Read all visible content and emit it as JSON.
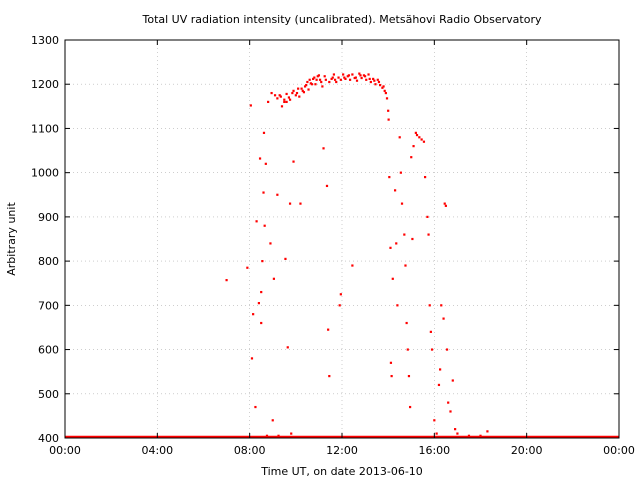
{
  "chart_data": {
    "type": "scatter",
    "title": "Total UV radiation intensity (uncalibrated). Metsähovi Radio Observatory",
    "xlabel": "Time UT, on date 2013-06-10",
    "ylabel": "Arbitrary unit",
    "x_unit": "hours UT",
    "xlim": [
      0,
      24
    ],
    "ylim": [
      400,
      1300
    ],
    "x_ticks": [
      {
        "value": 0,
        "label": "00:00"
      },
      {
        "value": 4,
        "label": "04:00"
      },
      {
        "value": 8,
        "label": "08:00"
      },
      {
        "value": 12,
        "label": "12:00"
      },
      {
        "value": 16,
        "label": "16:00"
      },
      {
        "value": 20,
        "label": "20:00"
      },
      {
        "value": 24,
        "label": "00:00"
      }
    ],
    "y_ticks": [
      400,
      500,
      600,
      700,
      800,
      900,
      1000,
      1100,
      1200,
      1300
    ],
    "grid": true,
    "legend": "none",
    "series_color": "#ff0000",
    "baseline": {
      "value": 400,
      "x_range": [
        0,
        24
      ]
    },
    "points": [
      [
        7.0,
        757
      ],
      [
        7.9,
        785
      ],
      [
        8.05,
        1152
      ],
      [
        8.1,
        580
      ],
      [
        8.15,
        680
      ],
      [
        8.25,
        470
      ],
      [
        8.3,
        890
      ],
      [
        8.4,
        705
      ],
      [
        8.45,
        1032
      ],
      [
        8.5,
        730
      ],
      [
        8.55,
        800
      ],
      [
        8.6,
        955
      ],
      [
        8.62,
        1090
      ],
      [
        8.65,
        880
      ],
      [
        8.7,
        1020
      ],
      [
        8.5,
        660
      ],
      [
        8.8,
        1160
      ],
      [
        8.9,
        840
      ],
      [
        8.95,
        1180
      ],
      [
        9.05,
        760
      ],
      [
        9.1,
        1175
      ],
      [
        9.2,
        950
      ],
      [
        9.3,
        1175
      ],
      [
        9.4,
        1150
      ],
      [
        9.5,
        1165
      ],
      [
        9.55,
        805
      ],
      [
        9.6,
        1160
      ],
      [
        9.65,
        605
      ],
      [
        9.7,
        1170
      ],
      [
        9.75,
        930
      ],
      [
        9.85,
        1180
      ],
      [
        9.9,
        1025
      ],
      [
        10.0,
        1175
      ],
      [
        10.1,
        1190
      ],
      [
        10.2,
        930
      ],
      [
        10.3,
        1185
      ],
      [
        10.4,
        1195
      ],
      [
        10.5,
        1205
      ],
      [
        10.6,
        1210
      ],
      [
        10.7,
        1200
      ],
      [
        10.8,
        1215
      ],
      [
        10.9,
        1210
      ],
      [
        11.0,
        1220
      ],
      [
        11.1,
        1205
      ],
      [
        11.2,
        1055
      ],
      [
        11.3,
        1210
      ],
      [
        11.35,
        970
      ],
      [
        11.4,
        645
      ],
      [
        11.45,
        540
      ],
      [
        11.6,
        1215
      ],
      [
        11.7,
        1210
      ],
      [
        11.9,
        700
      ],
      [
        11.95,
        725
      ],
      [
        12.1,
        1215
      ],
      [
        12.3,
        1220
      ],
      [
        12.45,
        790
      ],
      [
        12.6,
        1215
      ],
      [
        12.8,
        1220
      ],
      [
        13.0,
        1218
      ],
      [
        13.2,
        1212
      ],
      [
        13.4,
        1208
      ],
      [
        13.6,
        1205
      ],
      [
        13.8,
        1195
      ],
      [
        13.9,
        1180
      ],
      [
        14.0,
        1140
      ],
      [
        14.02,
        1120
      ],
      [
        14.05,
        990
      ],
      [
        14.1,
        830
      ],
      [
        14.12,
        570
      ],
      [
        14.15,
        540
      ],
      [
        14.2,
        760
      ],
      [
        14.3,
        960
      ],
      [
        14.35,
        840
      ],
      [
        14.4,
        700
      ],
      [
        14.5,
        1080
      ],
      [
        14.55,
        1000
      ],
      [
        14.6,
        930
      ],
      [
        14.7,
        860
      ],
      [
        14.75,
        790
      ],
      [
        14.8,
        660
      ],
      [
        14.85,
        600
      ],
      [
        14.9,
        540
      ],
      [
        14.95,
        470
      ],
      [
        15.0,
        1035
      ],
      [
        15.05,
        850
      ],
      [
        15.1,
        1060
      ],
      [
        15.2,
        1090
      ],
      [
        15.25,
        1085
      ],
      [
        15.35,
        1080
      ],
      [
        15.45,
        1075
      ],
      [
        15.55,
        1070
      ],
      [
        15.6,
        990
      ],
      [
        15.7,
        900
      ],
      [
        15.75,
        860
      ],
      [
        15.8,
        700
      ],
      [
        15.85,
        640
      ],
      [
        15.9,
        600
      ],
      [
        16.0,
        440
      ],
      [
        16.1,
        410
      ],
      [
        16.2,
        520
      ],
      [
        16.25,
        555
      ],
      [
        16.3,
        700
      ],
      [
        16.4,
        670
      ],
      [
        16.45,
        930
      ],
      [
        16.5,
        925
      ],
      [
        16.55,
        600
      ],
      [
        16.6,
        480
      ],
      [
        16.7,
        460
      ],
      [
        16.8,
        530
      ],
      [
        16.9,
        420
      ],
      [
        17.0,
        410
      ],
      [
        17.5,
        405
      ],
      [
        18.0,
        405
      ],
      [
        18.3,
        415
      ],
      [
        8.75,
        405
      ],
      [
        9.0,
        440
      ],
      [
        9.25,
        405
      ],
      [
        9.8,
        410
      ]
    ]
  }
}
